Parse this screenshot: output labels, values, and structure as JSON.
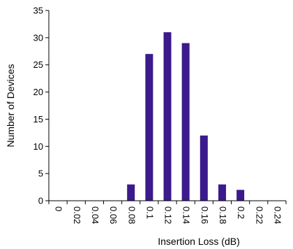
{
  "chart_data": {
    "type": "bar",
    "title": "",
    "xlabel": "Insertion Loss (dB)",
    "ylabel": "Number of Devices",
    "categories": [
      "0",
      "0.02",
      "0.04",
      "0.06",
      "0.08",
      "0.1",
      "0.12",
      "0.14",
      "0.16",
      "0.18",
      "0.2",
      "0.22",
      "0.24"
    ],
    "values": [
      0,
      0,
      0,
      0,
      3,
      27,
      31,
      29,
      12,
      3,
      2,
      0,
      0
    ],
    "ylim": [
      0,
      35
    ],
    "yticks": [
      "0",
      "5",
      "10",
      "15",
      "20",
      "25",
      "30",
      "35"
    ],
    "grid": false,
    "legend": "none",
    "bar_color": "#3b1a8c",
    "axis_color": "#000000"
  }
}
